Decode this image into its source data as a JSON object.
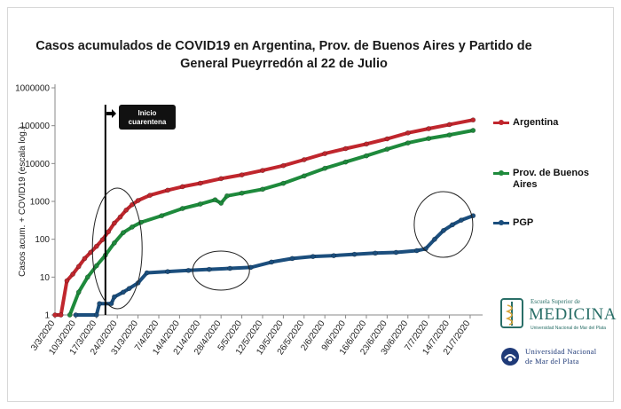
{
  "title": {
    "line1": "Casos acumulados  de COVID19 en Argentina, Prov. de Buenos Aires y Partido de",
    "line2": "General Pueyrredón al  22 de Julio"
  },
  "annotation": {
    "line1": "Inicio",
    "line2": "cuarentena",
    "arrow_icon": "arrow-right-icon"
  },
  "logos": {
    "medicina_small": "Escuela Superior de",
    "medicina_big": "MEDICINA",
    "medicina_tiny": "Universidad Nacional de Mar del Plata",
    "unmdp_line1": "Universidad Nacional",
    "unmdp_line2": "de Mar del Plata"
  },
  "chart_data": {
    "type": "line",
    "ylabel": "Casos  acum. + COVID19 (escala log.)",
    "y_scale": "log",
    "ylim": [
      1,
      1000000
    ],
    "y_ticks": [
      1,
      10,
      100,
      1000,
      10000,
      100000,
      1000000
    ],
    "y_tick_labels": [
      "1",
      "10",
      "100",
      "1000",
      "10000",
      "100000",
      "1000000"
    ],
    "x_start": "3/3/2020",
    "x_end": "24/7/2020",
    "x_tick_labels": [
      "3/3/2020",
      "10/3/2020",
      "17/3/2020",
      "24/3/2020",
      "31/3/2020",
      "7/4/2020",
      "14/4/2020",
      "21/4/2020",
      "28/4/2020",
      "5/5/2020",
      "12/5/2020",
      "19/5/2020",
      "26/5/2020",
      "2/6/2020",
      "9/6/2020",
      "16/6/2020",
      "23/6/2020",
      "30/6/2020",
      "7/7/2020",
      "14/7/2020",
      "21/7/2020"
    ],
    "grid": false,
    "legend_position": "right",
    "quarantine_start": "20/3/2020",
    "series": [
      {
        "name": "Argentina",
        "color": "#c0262d",
        "points": [
          [
            "3/3/2020",
            1
          ],
          [
            "5/3/2020",
            1
          ],
          [
            "7/3/2020",
            8
          ],
          [
            "9/3/2020",
            12
          ],
          [
            "11/3/2020",
            19
          ],
          [
            "13/3/2020",
            31
          ],
          [
            "15/3/2020",
            45
          ],
          [
            "17/3/2020",
            65
          ],
          [
            "19/3/2020",
            97
          ],
          [
            "21/3/2020",
            158
          ],
          [
            "23/3/2020",
            266
          ],
          [
            "25/3/2020",
            387
          ],
          [
            "27/3/2020",
            589
          ],
          [
            "29/3/2020",
            820
          ],
          [
            "31/3/2020",
            1054
          ],
          [
            "4/4/2020",
            1451
          ],
          [
            "10/4/2020",
            1975
          ],
          [
            "15/4/2020",
            2443
          ],
          [
            "21/4/2020",
            3031
          ],
          [
            "28/4/2020",
            4003
          ],
          [
            "5/5/2020",
            5020
          ],
          [
            "12/5/2020",
            6563
          ],
          [
            "19/5/2020",
            8796
          ],
          [
            "26/5/2020",
            12628
          ],
          [
            "2/6/2020",
            18319
          ],
          [
            "9/6/2020",
            24761
          ],
          [
            "16/6/2020",
            32785
          ],
          [
            "23/6/2020",
            44931
          ],
          [
            "30/6/2020",
            64530
          ],
          [
            "7/7/2020",
            83426
          ],
          [
            "14/7/2020",
            106910
          ],
          [
            "22/7/2020",
            141900
          ]
        ]
      },
      {
        "name": "Prov. de Buenos Aires",
        "color": "#1e8a3c",
        "points": [
          [
            "8/3/2020",
            1
          ],
          [
            "11/3/2020",
            4
          ],
          [
            "14/3/2020",
            10
          ],
          [
            "17/3/2020",
            20
          ],
          [
            "20/3/2020",
            38
          ],
          [
            "23/3/2020",
            80
          ],
          [
            "26/3/2020",
            150
          ],
          [
            "29/3/2020",
            210
          ],
          [
            "1/4/2020",
            280
          ],
          [
            "8/4/2020",
            420
          ],
          [
            "15/4/2020",
            650
          ],
          [
            "21/4/2020",
            850
          ],
          [
            "26/4/2020",
            1100
          ],
          [
            "28/4/2020",
            900
          ],
          [
            "30/4/2020",
            1400
          ],
          [
            "5/5/2020",
            1650
          ],
          [
            "12/5/2020",
            2100
          ],
          [
            "19/5/2020",
            3000
          ],
          [
            "26/5/2020",
            4700
          ],
          [
            "2/6/2020",
            7500
          ],
          [
            "9/6/2020",
            11000
          ],
          [
            "16/6/2020",
            16000
          ],
          [
            "23/6/2020",
            24000
          ],
          [
            "30/6/2020",
            35000
          ],
          [
            "7/7/2020",
            46000
          ],
          [
            "14/7/2020",
            57000
          ],
          [
            "22/7/2020",
            75000
          ]
        ]
      },
      {
        "name": "PGP",
        "color": "#1b4e7d",
        "points": [
          [
            "10/3/2020",
            1
          ],
          [
            "17/3/2020",
            1
          ],
          [
            "18/3/2020",
            2
          ],
          [
            "22/3/2020",
            2
          ],
          [
            "23/3/2020",
            3
          ],
          [
            "26/3/2020",
            4
          ],
          [
            "28/3/2020",
            5
          ],
          [
            "31/3/2020",
            7
          ],
          [
            "3/4/2020",
            13
          ],
          [
            "10/4/2020",
            14
          ],
          [
            "17/4/2020",
            15
          ],
          [
            "24/4/2020",
            16
          ],
          [
            "1/5/2020",
            17
          ],
          [
            "8/5/2020",
            18
          ],
          [
            "15/5/2020",
            25
          ],
          [
            "22/5/2020",
            31
          ],
          [
            "29/5/2020",
            35
          ],
          [
            "5/6/2020",
            37
          ],
          [
            "12/6/2020",
            40
          ],
          [
            "19/6/2020",
            43
          ],
          [
            "26/6/2020",
            45
          ],
          [
            "3/7/2020",
            50
          ],
          [
            "6/7/2020",
            56
          ],
          [
            "9/7/2020",
            100
          ],
          [
            "12/7/2020",
            170
          ],
          [
            "15/7/2020",
            240
          ],
          [
            "18/7/2020",
            320
          ],
          [
            "22/7/2020",
            420
          ]
        ]
      }
    ],
    "highlight_ellipses": [
      "24/3/2020",
      "28/4/2020",
      "12/7/2020"
    ]
  }
}
